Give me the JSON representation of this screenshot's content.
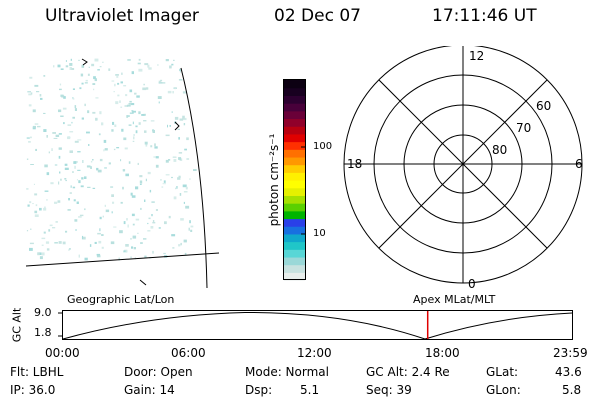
{
  "header": {
    "instrument": "Ultraviolet Imager",
    "date": "02 Dec 07",
    "time": "17:11:46 UT"
  },
  "colorbar": {
    "unit_label": "photon cm⁻²s⁻¹",
    "ticks": [
      "100",
      "10"
    ],
    "colors": [
      "#e8eeec",
      "#c8e2e0",
      "#9ad8d8",
      "#58d6d6",
      "#20c6c8",
      "#10a8cc",
      "#1870e0",
      "#2a40e8",
      "#00b400",
      "#5ad000",
      "#a6e000",
      "#e6f000",
      "#ffff00",
      "#fff000",
      "#ffcc00",
      "#ff9800",
      "#ff7000",
      "#ff3000",
      "#e00000",
      "#b80010",
      "#90002a",
      "#6a0038",
      "#48003a",
      "#2c0030",
      "#180020",
      "#0c0012"
    ]
  },
  "polar": {
    "mlt_labels": {
      "top": "12",
      "left": "18",
      "right": "6",
      "bottom": "0"
    },
    "lat_labels": [
      "60",
      "70",
      "80"
    ]
  },
  "timeline": {
    "left_title": "Geographic Lat/Lon",
    "right_title": "Apex MLat/MLT",
    "y_axis_label": "GC Alt",
    "y_ticks": [
      "9.0",
      "1.8"
    ],
    "x_ticks": [
      "00:00",
      "06:00",
      "12:00",
      "18:00",
      "23:59"
    ],
    "marker_time": "17:11:46",
    "marker_color": "#e00000"
  },
  "status": {
    "row1": {
      "filter": "Flt: LBHL",
      "door": "Door: Open",
      "mode": "Mode: Normal",
      "gc_alt": "GC Alt: 2.4 Re",
      "glat_label": "GLat:",
      "glat_value": "43.6"
    },
    "row2": {
      "ip": "IP: 36.0",
      "gain": "Gain: 14",
      "dsp_label": "Dsp:",
      "dsp_value": "5.1",
      "seq": "Seq: 39",
      "glon_label": "GLon:",
      "glon_value": "5.8"
    }
  }
}
